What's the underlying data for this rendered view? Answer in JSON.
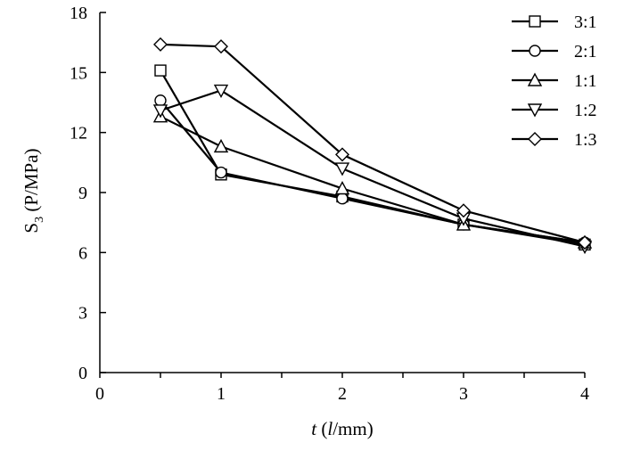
{
  "chart_data": {
    "type": "line",
    "x_ticks": [
      0,
      1,
      2,
      3,
      4
    ],
    "y_ticks": [
      0,
      3,
      6,
      9,
      12,
      15,
      18
    ],
    "xlim": [
      0,
      4
    ],
    "ylim": [
      0,
      18
    ],
    "xlabel": {
      "italic": "t",
      "rest1": " (",
      "italic2": "l",
      "rest2": "/mm)"
    },
    "ylabel": {
      "main": "S",
      "sub": "3",
      "rest": " (P/MPa)"
    },
    "grid": false,
    "legend_position": "top-right",
    "series": [
      {
        "name": "3:1",
        "marker": "square",
        "x": [
          0.5,
          1,
          2,
          3,
          4
        ],
        "y": [
          15.1,
          9.9,
          8.8,
          7.4,
          6.4
        ]
      },
      {
        "name": "2:1",
        "marker": "circle",
        "x": [
          0.5,
          1,
          2,
          3,
          4
        ],
        "y": [
          13.6,
          10.0,
          8.7,
          7.4,
          6.5
        ]
      },
      {
        "name": "1:1",
        "marker": "triangle-up",
        "x": [
          0.5,
          1,
          2,
          3,
          4
        ],
        "y": [
          12.8,
          11.3,
          9.2,
          7.4,
          6.5
        ]
      },
      {
        "name": "1:2",
        "marker": "triangle-down",
        "x": [
          0.5,
          1,
          2,
          3,
          4
        ],
        "y": [
          13.1,
          14.1,
          10.2,
          7.7,
          6.3
        ]
      },
      {
        "name": "1:3",
        "marker": "diamond",
        "x": [
          0.5,
          1,
          2,
          3,
          4
        ],
        "y": [
          16.4,
          16.3,
          10.9,
          8.1,
          6.5
        ]
      }
    ]
  }
}
